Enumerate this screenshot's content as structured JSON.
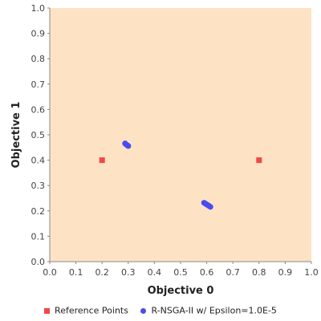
{
  "chart_data": {
    "type": "scatter",
    "title": "",
    "xlabel": "Objective 0",
    "ylabel": "Objective 1",
    "xlim": [
      0.0,
      1.0
    ],
    "ylim": [
      0.0,
      1.0
    ],
    "xticks": [
      "0.0",
      "0.1",
      "0.2",
      "0.3",
      "0.4",
      "0.5",
      "0.6",
      "0.7",
      "0.8",
      "0.9",
      "1.0"
    ],
    "yticks": [
      "0.0",
      "0.1",
      "0.2",
      "0.3",
      "0.4",
      "0.5",
      "0.6",
      "0.7",
      "0.8",
      "0.9",
      "1.0"
    ],
    "grid": false,
    "background_color": "#fde3c4",
    "legend_placement": "bottom",
    "series": [
      {
        "name": "Reference Points",
        "marker": "square",
        "color": "#f04848",
        "points": [
          {
            "x": 0.2,
            "y": 0.4
          },
          {
            "x": 0.8,
            "y": 0.4
          }
        ]
      },
      {
        "name": "R-NSGA-II w/ Epsilon=1.0E-5",
        "marker": "circle",
        "color": "#4a4cf0",
        "points": [
          {
            "x": 0.288,
            "y": 0.466
          },
          {
            "x": 0.292,
            "y": 0.462
          },
          {
            "x": 0.296,
            "y": 0.459
          },
          {
            "x": 0.3,
            "y": 0.456
          },
          {
            "x": 0.59,
            "y": 0.232
          },
          {
            "x": 0.596,
            "y": 0.228
          },
          {
            "x": 0.602,
            "y": 0.224
          },
          {
            "x": 0.608,
            "y": 0.22
          },
          {
            "x": 0.614,
            "y": 0.216
          }
        ]
      }
    ]
  }
}
